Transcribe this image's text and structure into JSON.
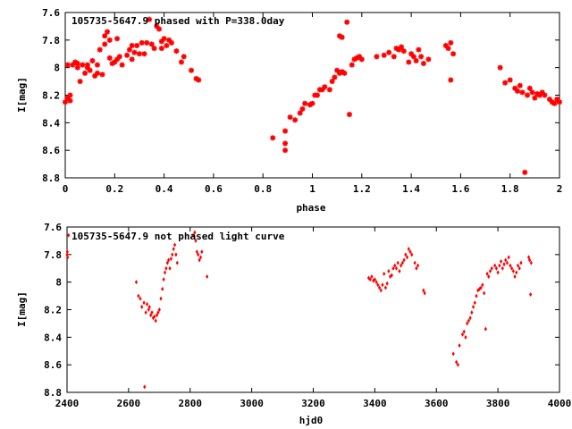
{
  "chart_data": [
    {
      "type": "scatter",
      "title": "105735-5647.9 phased with P=338.0day",
      "xlabel": "phase",
      "ylabel": "I[mag]",
      "xlim": [
        0,
        2
      ],
      "ylim": [
        7.6,
        8.8
      ],
      "y_inverted": true,
      "x_ticks": [
        "0",
        "0.2",
        "0.4",
        "0.6",
        "0.8",
        "1",
        "1.2",
        "1.4",
        "1.6",
        "1.8",
        "2"
      ],
      "y_ticks": [
        "7.6",
        "7.8",
        "8",
        "8.2",
        "8.4",
        "8.6",
        "8.8"
      ],
      "marker": "star",
      "color": "#ff0000",
      "series": [
        {
          "points": [
            [
              0.0,
              8.25
            ],
            [
              0.01,
              8.22
            ],
            [
              0.01,
              7.98
            ],
            [
              0.02,
              8.24
            ],
            [
              0.02,
              8.2
            ],
            [
              0.03,
              7.98
            ],
            [
              0.04,
              7.96
            ],
            [
              0.05,
              7.97
            ],
            [
              0.05,
              8.0
            ],
            [
              0.06,
              8.1
            ],
            [
              0.07,
              7.98
            ],
            [
              0.08,
              8.04
            ],
            [
              0.09,
              8.0
            ],
            [
              0.09,
              7.98
            ],
            [
              0.1,
              8.02
            ],
            [
              0.11,
              7.95
            ],
            [
              0.12,
              8.06
            ],
            [
              0.13,
              8.04
            ],
            [
              0.13,
              7.98
            ],
            [
              0.14,
              7.87
            ],
            [
              0.15,
              8.05
            ],
            [
              0.16,
              7.83
            ],
            [
              0.16,
              7.77
            ],
            [
              0.17,
              7.74
            ],
            [
              0.18,
              7.8
            ],
            [
              0.18,
              7.93
            ],
            [
              0.19,
              7.97
            ],
            [
              0.2,
              7.96
            ],
            [
              0.21,
              7.79
            ],
            [
              0.21,
              7.94
            ],
            [
              0.22,
              7.92
            ],
            [
              0.23,
              7.98
            ],
            [
              0.25,
              7.91
            ],
            [
              0.26,
              7.87
            ],
            [
              0.27,
              7.84
            ],
            [
              0.27,
              7.94
            ],
            [
              0.28,
              7.89
            ],
            [
              0.29,
              7.84
            ],
            [
              0.3,
              7.9
            ],
            [
              0.31,
              7.82
            ],
            [
              0.32,
              7.9
            ],
            [
              0.33,
              7.82
            ],
            [
              0.34,
              7.65
            ],
            [
              0.35,
              7.83
            ],
            [
              0.36,
              7.86
            ],
            [
              0.37,
              7.7
            ],
            [
              0.38,
              7.72
            ],
            [
              0.39,
              7.81
            ],
            [
              0.39,
              7.86
            ],
            [
              0.4,
              7.79
            ],
            [
              0.41,
              7.84
            ],
            [
              0.42,
              7.8
            ],
            [
              0.43,
              7.82
            ],
            [
              0.45,
              7.88
            ],
            [
              0.47,
              7.96
            ],
            [
              0.48,
              7.92
            ],
            [
              0.51,
              8.02
            ],
            [
              0.53,
              8.08
            ],
            [
              0.54,
              8.09
            ],
            [
              0.84,
              8.51
            ],
            [
              0.89,
              8.46
            ],
            [
              0.89,
              8.55
            ],
            [
              0.89,
              8.6
            ],
            [
              0.91,
              8.36
            ],
            [
              0.93,
              8.38
            ],
            [
              0.95,
              8.33
            ],
            [
              0.96,
              8.3
            ],
            [
              0.97,
              8.26
            ],
            [
              0.99,
              8.27
            ],
            [
              1.0,
              8.26
            ],
            [
              1.01,
              8.2
            ],
            [
              1.02,
              8.2
            ],
            [
              1.03,
              8.16
            ],
            [
              1.04,
              8.16
            ],
            [
              1.05,
              8.14
            ],
            [
              1.07,
              8.16
            ],
            [
              1.08,
              8.1
            ],
            [
              1.09,
              8.07
            ],
            [
              1.1,
              8.02
            ],
            [
              1.11,
              8.04
            ],
            [
              1.11,
              7.77
            ],
            [
              1.12,
              8.03
            ],
            [
              1.12,
              7.78
            ],
            [
              1.13,
              8.04
            ],
            [
              1.14,
              7.67
            ],
            [
              1.15,
              8.34
            ],
            [
              1.16,
              7.98
            ],
            [
              1.17,
              7.94
            ],
            [
              1.18,
              7.93
            ],
            [
              1.19,
              7.92
            ],
            [
              1.2,
              7.94
            ],
            [
              1.26,
              7.92
            ],
            [
              1.29,
              7.91
            ],
            [
              1.31,
              7.89
            ],
            [
              1.33,
              7.92
            ],
            [
              1.34,
              7.86
            ],
            [
              1.35,
              7.87
            ],
            [
              1.36,
              7.85
            ],
            [
              1.37,
              7.88
            ],
            [
              1.39,
              7.96
            ],
            [
              1.4,
              7.9
            ],
            [
              1.41,
              7.92
            ],
            [
              1.42,
              7.95
            ],
            [
              1.43,
              7.87
            ],
            [
              1.44,
              7.92
            ],
            [
              1.45,
              7.97
            ],
            [
              1.47,
              7.94
            ],
            [
              1.54,
              7.84
            ],
            [
              1.55,
              7.86
            ],
            [
              1.56,
              7.82
            ],
            [
              1.56,
              8.09
            ],
            [
              1.57,
              7.9
            ],
            [
              1.76,
              8.0
            ],
            [
              1.78,
              8.11
            ],
            [
              1.8,
              8.09
            ],
            [
              1.82,
              8.15
            ],
            [
              1.83,
              8.17
            ],
            [
              1.84,
              8.13
            ],
            [
              1.85,
              8.18
            ],
            [
              1.86,
              8.76
            ],
            [
              1.87,
              8.2
            ],
            [
              1.88,
              8.15
            ],
            [
              1.89,
              8.18
            ],
            [
              1.9,
              8.22
            ],
            [
              1.91,
              8.19
            ],
            [
              1.92,
              8.2
            ],
            [
              1.93,
              8.18
            ],
            [
              1.94,
              8.2
            ],
            [
              1.96,
              8.23
            ],
            [
              1.97,
              8.25
            ],
            [
              1.98,
              8.26
            ],
            [
              1.99,
              8.23
            ],
            [
              2.0,
              8.25
            ]
          ]
        }
      ]
    },
    {
      "type": "scatter",
      "title": "105735-5647.9 not phased light curve",
      "xlabel": "hjd0",
      "ylabel": "I[mag]",
      "xlim": [
        2400,
        4000
      ],
      "ylim": [
        7.6,
        8.8
      ],
      "y_inverted": true,
      "x_ticks": [
        "2400",
        "2600",
        "2800",
        "3000",
        "3200",
        "3400",
        "3600",
        "3800",
        "4000"
      ],
      "y_ticks": [
        "7.6",
        "7.8",
        "8",
        "8.2",
        "8.4",
        "8.6",
        "8.8"
      ],
      "marker": "diamond",
      "color": "#ff0000",
      "series": [
        {
          "points": [
            [
              2400,
              7.8
            ],
            [
              2401,
              7.78
            ],
            [
              2402,
              7.82
            ],
            [
              2405,
              7.66
            ],
            [
              2625,
              8.0
            ],
            [
              2632,
              8.1
            ],
            [
              2638,
              8.12
            ],
            [
              2643,
              8.18
            ],
            [
              2650,
              8.15
            ],
            [
              2652,
              8.76
            ],
            [
              2656,
              8.22
            ],
            [
              2660,
              8.16
            ],
            [
              2665,
              8.2
            ],
            [
              2668,
              8.18
            ],
            [
              2672,
              8.24
            ],
            [
              2676,
              8.22
            ],
            [
              2680,
              8.26
            ],
            [
              2684,
              8.25
            ],
            [
              2688,
              8.28
            ],
            [
              2692,
              8.24
            ],
            [
              2696,
              8.22
            ],
            [
              2700,
              8.2
            ],
            [
              2705,
              8.12
            ],
            [
              2710,
              8.05
            ],
            [
              2714,
              7.98
            ],
            [
              2718,
              7.93
            ],
            [
              2722,
              7.9
            ],
            [
              2726,
              7.86
            ],
            [
              2730,
              7.84
            ],
            [
              2734,
              7.9
            ],
            [
              2738,
              7.83
            ],
            [
              2742,
              7.8
            ],
            [
              2746,
              7.76
            ],
            [
              2750,
              7.73
            ],
            [
              2754,
              7.8
            ],
            [
              2758,
              7.86
            ],
            [
              2810,
              7.66
            ],
            [
              2815,
              7.64
            ],
            [
              2818,
              7.7
            ],
            [
              2822,
              7.78
            ],
            [
              2826,
              7.8
            ],
            [
              2830,
              7.84
            ],
            [
              2834,
              7.82
            ],
            [
              2838,
              7.78
            ],
            [
              2855,
              7.96
            ],
            [
              3380,
              7.97
            ],
            [
              3385,
              7.98
            ],
            [
              3390,
              7.96
            ],
            [
              3395,
              7.99
            ],
            [
              3400,
              7.98
            ],
            [
              3405,
              8.0
            ],
            [
              3410,
              8.02
            ],
            [
              3415,
              8.04
            ],
            [
              3420,
              8.06
            ],
            [
              3425,
              8.02
            ],
            [
              3430,
              7.94
            ],
            [
              3435,
              8.04
            ],
            [
              3440,
              8.01
            ],
            [
              3445,
              7.92
            ],
            [
              3450,
              7.96
            ],
            [
              3455,
              7.95
            ],
            [
              3460,
              7.9
            ],
            [
              3465,
              7.88
            ],
            [
              3470,
              7.9
            ],
            [
              3475,
              7.86
            ],
            [
              3480,
              7.92
            ],
            [
              3485,
              7.88
            ],
            [
              3490,
              7.86
            ],
            [
              3495,
              7.84
            ],
            [
              3500,
              7.8
            ],
            [
              3505,
              7.82
            ],
            [
              3510,
              7.76
            ],
            [
              3515,
              7.78
            ],
            [
              3520,
              7.8
            ],
            [
              3530,
              7.86
            ],
            [
              3535,
              7.9
            ],
            [
              3540,
              7.88
            ],
            [
              3558,
              8.06
            ],
            [
              3562,
              8.08
            ],
            [
              3655,
              8.52
            ],
            [
              3665,
              8.58
            ],
            [
              3670,
              8.6
            ],
            [
              3675,
              8.46
            ],
            [
              3685,
              8.38
            ],
            [
              3690,
              8.36
            ],
            [
              3695,
              8.4
            ],
            [
              3700,
              8.3
            ],
            [
              3705,
              8.28
            ],
            [
              3710,
              8.26
            ],
            [
              3715,
              8.22
            ],
            [
              3720,
              8.18
            ],
            [
              3725,
              8.15
            ],
            [
              3730,
              8.1
            ],
            [
              3735,
              8.06
            ],
            [
              3740,
              8.05
            ],
            [
              3745,
              8.04
            ],
            [
              3750,
              8.02
            ],
            [
              3755,
              8.08
            ],
            [
              3760,
              8.34
            ],
            [
              3765,
              7.94
            ],
            [
              3770,
              7.96
            ],
            [
              3775,
              7.92
            ],
            [
              3780,
              7.9
            ],
            [
              3790,
              7.88
            ],
            [
              3795,
              7.9
            ],
            [
              3800,
              7.93
            ],
            [
              3805,
              7.88
            ],
            [
              3810,
              7.85
            ],
            [
              3815,
              7.9
            ],
            [
              3820,
              7.87
            ],
            [
              3825,
              7.84
            ],
            [
              3830,
              7.86
            ],
            [
              3835,
              7.82
            ],
            [
              3840,
              7.88
            ],
            [
              3845,
              7.9
            ],
            [
              3850,
              7.92
            ],
            [
              3855,
              7.96
            ],
            [
              3860,
              7.93
            ],
            [
              3865,
              7.88
            ],
            [
              3870,
              7.9
            ],
            [
              3875,
              7.86
            ],
            [
              3900,
              7.82
            ],
            [
              3903,
              7.84
            ],
            [
              3906,
              8.09
            ],
            [
              3908,
              7.86
            ]
          ]
        }
      ]
    }
  ]
}
